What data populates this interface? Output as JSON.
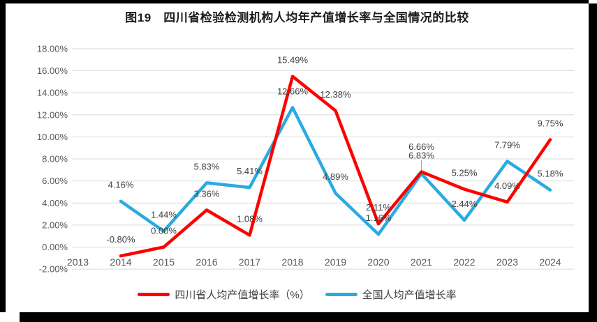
{
  "title": "图19　四川省检验检测机构人均年产值增长率与全国情况的比较",
  "chart_data": {
    "type": "line",
    "categories": [
      "2013",
      "2014",
      "2015",
      "2016",
      "2017",
      "2018",
      "2019",
      "2020",
      "2021",
      "2022",
      "2023",
      "2024"
    ],
    "series": [
      {
        "name": "四川省人均产值增长率（%）",
        "color": "#FF0000",
        "values": [
          null,
          -0.8,
          0.0,
          3.36,
          1.08,
          15.49,
          12.38,
          2.11,
          6.83,
          5.25,
          4.09,
          9.75
        ]
      },
      {
        "name": "全国人均产值增长率",
        "color": "#29ABE2",
        "values": [
          null,
          4.16,
          1.44,
          5.83,
          5.41,
          12.66,
          4.89,
          1.16,
          6.66,
          2.44,
          7.79,
          5.18
        ]
      }
    ],
    "title": "图19　四川省检验检测机构人均年产值增长率与全国情况的比较",
    "xlabel": "",
    "ylabel": "",
    "ylim": [
      -2,
      18
    ],
    "ytick_step": 2,
    "ytick_format": "0.00%",
    "grid": true,
    "legend_position": "bottom",
    "data_labels": true,
    "callout": {
      "series_index": 0,
      "category_index": 8
    },
    "colors": {
      "gridline": "#D9D9D9",
      "axis_text": "#595959",
      "data_label_text": "#404040",
      "leader_line": "#A6A6A6"
    }
  }
}
